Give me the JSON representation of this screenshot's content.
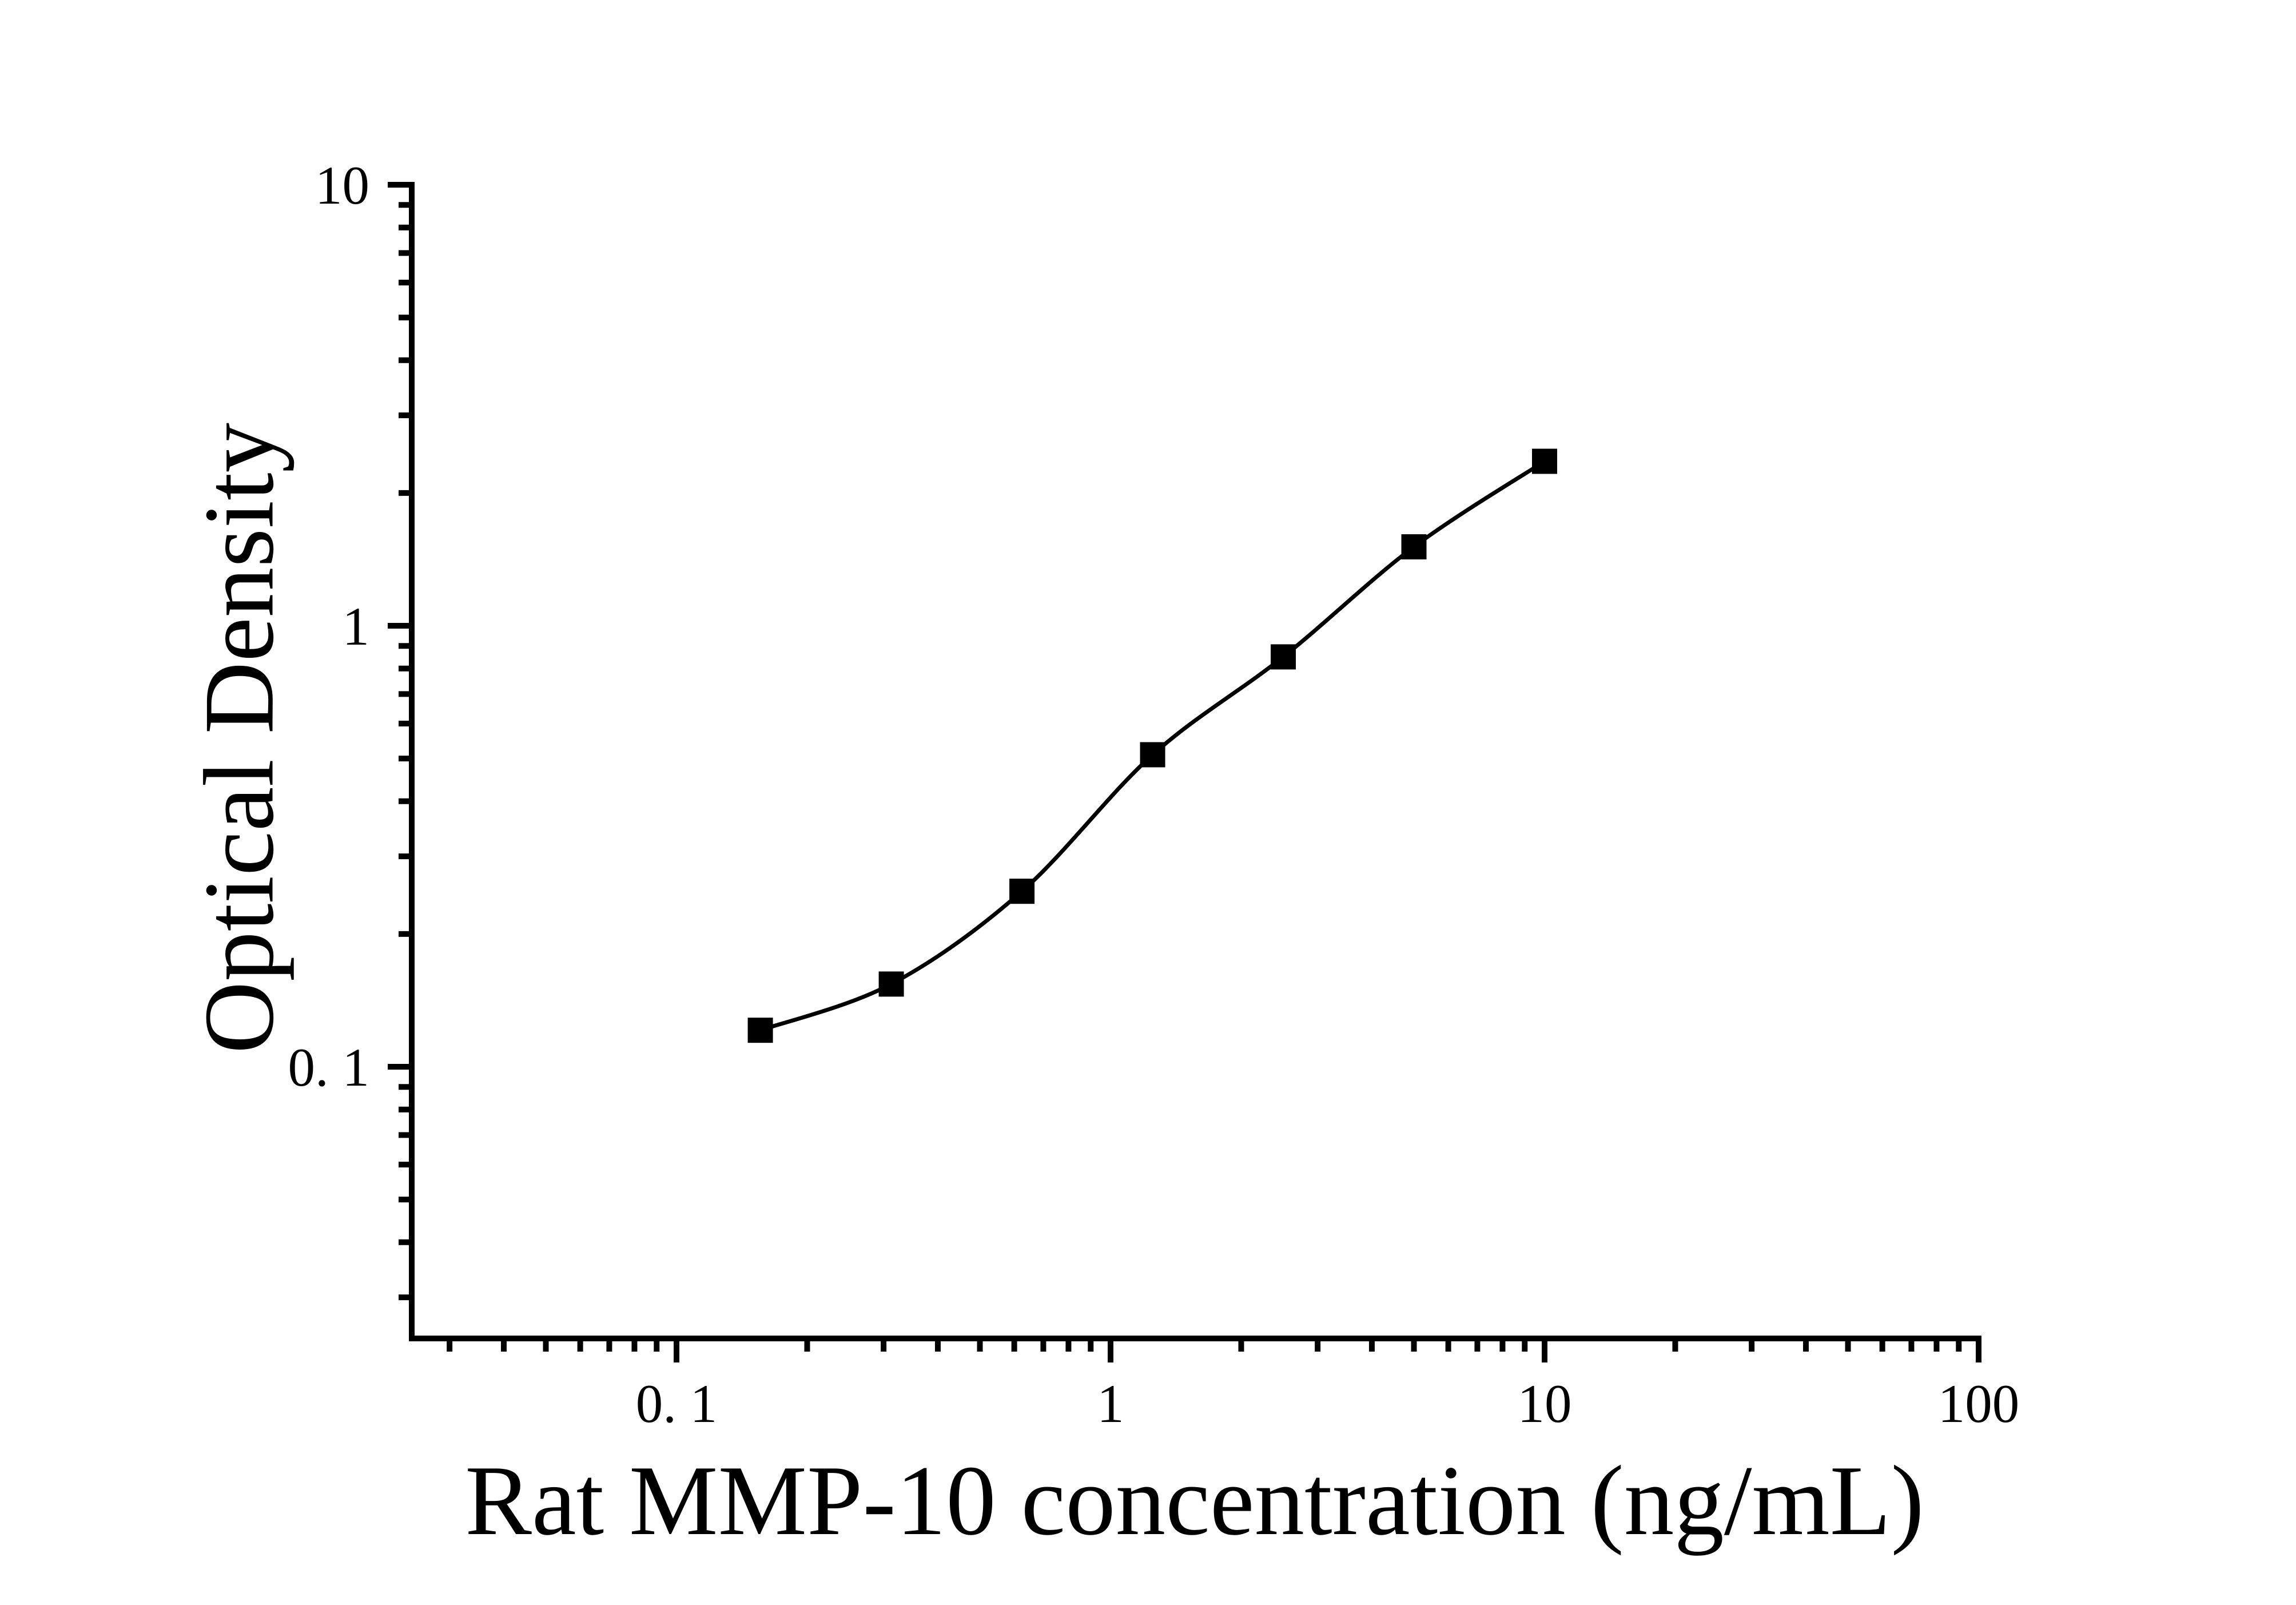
{
  "figure": {
    "background": "#ffffff",
    "ink_color": "#000000"
  },
  "chart_data": {
    "type": "scatter",
    "subtype": "standard-curve-log-log",
    "title": "",
    "xlabel": "Rat MMP-10 concentration (ng/mL)",
    "ylabel": "Optical Density",
    "x_scale": "log",
    "y_scale": "log",
    "x_range": [
      0.0244,
      100
    ],
    "y_range": [
      0.0243,
      10
    ],
    "grid": "off",
    "legend": "none",
    "x_major_ticks": [
      {
        "value": 0.1,
        "label": "0. 1"
      },
      {
        "value": 1,
        "label": "1"
      },
      {
        "value": 10,
        "label": "10"
      },
      {
        "value": 100,
        "label": "100"
      }
    ],
    "y_major_ticks": [
      {
        "value": 10,
        "label": "10"
      },
      {
        "value": 1,
        "label": "1"
      },
      {
        "value": 0.1,
        "label": "0. 1"
      }
    ],
    "points": [
      {
        "x": 0.156,
        "y": 0.121
      },
      {
        "x": 0.3125,
        "y": 0.154
      },
      {
        "x": 0.625,
        "y": 0.25
      },
      {
        "x": 1.25,
        "y": 0.51
      },
      {
        "x": 2.5,
        "y": 0.85
      },
      {
        "x": 5,
        "y": 1.51
      },
      {
        "x": 10,
        "y": 2.36
      }
    ],
    "marker": "filled-square",
    "marker_color": "#000000",
    "line": "smooth",
    "line_color": "#000000"
  }
}
